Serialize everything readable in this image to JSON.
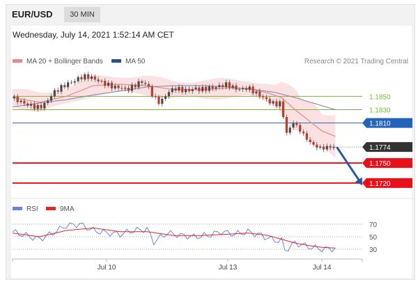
{
  "header": {
    "symbol": "EUR/USD",
    "timeframe": "30 MIN",
    "datetime": "Wednesday, July 14, 2021 1:52:14 AM CET"
  },
  "legend": {
    "ma20_bb": "MA 20 + Bollinger Bands",
    "ma50": "MA 50",
    "copyright": "Research © 2021 Trading Central",
    "rsi": "RSI",
    "rsi_ma": "9MA"
  },
  "colors": {
    "ma20": "#e88a8a",
    "band": "#fbe1e1",
    "ma50": "#7b84a8",
    "support": "#e8101a",
    "resistance": "#7cb53e",
    "pivot": "#2363b8",
    "price": "#333333",
    "rsi": "#6a86d8",
    "rsi_ma": "#e02828",
    "arrow": "#2a58a8"
  },
  "chart_data": {
    "type": "candlestick",
    "price_axis": {
      "min": 1.17,
      "max": 1.189
    },
    "x_labels": [
      "Jul 10",
      "Jul 13",
      "Jul 14"
    ],
    "levels": [
      {
        "value": 1.185,
        "label": "1.1850",
        "kind": "resistance"
      },
      {
        "value": 1.183,
        "label": "1.1830",
        "kind": "resistance"
      },
      {
        "value": 1.181,
        "label": "1.1810",
        "kind": "pivot"
      },
      {
        "value": 1.1774,
        "label": "1.1774",
        "kind": "price"
      },
      {
        "value": 1.175,
        "label": "1.1750",
        "kind": "support"
      },
      {
        "value": 1.172,
        "label": "1.1720",
        "kind": "support"
      }
    ],
    "price_path": [
      [
        0,
        1.1847
      ],
      [
        2,
        1.1843
      ],
      [
        4,
        1.1838
      ],
      [
        6,
        1.1835
      ],
      [
        8,
        1.1833
      ],
      [
        10,
        1.184
      ],
      [
        12,
        1.1855
      ],
      [
        14,
        1.1862
      ],
      [
        16,
        1.1868
      ],
      [
        18,
        1.1872
      ],
      [
        20,
        1.1878
      ],
      [
        22,
        1.188
      ],
      [
        24,
        1.1877
      ],
      [
        26,
        1.1872
      ],
      [
        28,
        1.1868
      ],
      [
        30,
        1.1864
      ],
      [
        32,
        1.1863
      ],
      [
        34,
        1.186
      ],
      [
        36,
        1.1865
      ],
      [
        38,
        1.1872
      ],
      [
        40,
        1.1868
      ],
      [
        42,
        1.1848
      ],
      [
        44,
        1.184
      ],
      [
        46,
        1.1855
      ],
      [
        48,
        1.1862
      ],
      [
        50,
        1.186
      ],
      [
        52,
        1.1858
      ],
      [
        54,
        1.1862
      ],
      [
        56,
        1.186
      ],
      [
        58,
        1.1862
      ],
      [
        60,
        1.1863
      ],
      [
        62,
        1.1866
      ],
      [
        64,
        1.1868
      ],
      [
        66,
        1.1862
      ],
      [
        68,
        1.186
      ],
      [
        70,
        1.1863
      ],
      [
        72,
        1.1856
      ],
      [
        74,
        1.185
      ],
      [
        76,
        1.1843
      ],
      [
        78,
        1.1838
      ],
      [
        80,
        1.184
      ],
      [
        81,
        1.18
      ],
      [
        82,
        1.179
      ],
      [
        83,
        1.1815
      ],
      [
        84,
        1.1808
      ],
      [
        86,
        1.1796
      ],
      [
        88,
        1.1783
      ],
      [
        90,
        1.1775
      ],
      [
        92,
        1.1772
      ],
      [
        94,
        1.1774
      ],
      [
        96,
        1.1774
      ]
    ],
    "ma20_path": [
      [
        0,
        1.1848
      ],
      [
        8,
        1.1841
      ],
      [
        16,
        1.185
      ],
      [
        24,
        1.1866
      ],
      [
        32,
        1.1868
      ],
      [
        40,
        1.1866
      ],
      [
        48,
        1.186
      ],
      [
        56,
        1.186
      ],
      [
        64,
        1.1862
      ],
      [
        70,
        1.1862
      ],
      [
        76,
        1.1855
      ],
      [
        80,
        1.1848
      ],
      [
        84,
        1.183
      ],
      [
        88,
        1.1814
      ],
      [
        92,
        1.1798
      ],
      [
        96,
        1.179
      ]
    ],
    "ma50_path": [
      [
        0,
        1.1834
      ],
      [
        8,
        1.184
      ],
      [
        16,
        1.1845
      ],
      [
        24,
        1.1852
      ],
      [
        32,
        1.1858
      ],
      [
        40,
        1.1864
      ],
      [
        48,
        1.1866
      ],
      [
        56,
        1.1866
      ],
      [
        64,
        1.1864
      ],
      [
        72,
        1.186
      ],
      [
        78,
        1.1856
      ],
      [
        84,
        1.1848
      ],
      [
        90,
        1.1839
      ],
      [
        96,
        1.183
      ]
    ],
    "projection": {
      "from": [
        96,
        1.1774
      ],
      "to": [
        104,
        1.172
      ]
    },
    "rsi": {
      "ticks": [
        30,
        50,
        70
      ],
      "values": [
        [
          0,
          58
        ],
        [
          4,
          52
        ],
        [
          8,
          46
        ],
        [
          12,
          56
        ],
        [
          16,
          68
        ],
        [
          20,
          70
        ],
        [
          24,
          60
        ],
        [
          28,
          56
        ],
        [
          32,
          54
        ],
        [
          36,
          60
        ],
        [
          40,
          62
        ],
        [
          42,
          42
        ],
        [
          46,
          56
        ],
        [
          50,
          52
        ],
        [
          54,
          50
        ],
        [
          58,
          52
        ],
        [
          62,
          58
        ],
        [
          66,
          54
        ],
        [
          70,
          58
        ],
        [
          74,
          52
        ],
        [
          78,
          44
        ],
        [
          80,
          44
        ],
        [
          81,
          28
        ],
        [
          84,
          40
        ],
        [
          88,
          34
        ],
        [
          92,
          30
        ],
        [
          96,
          31
        ]
      ],
      "ma_values": [
        [
          0,
          56
        ],
        [
          8,
          50
        ],
        [
          16,
          60
        ],
        [
          24,
          64
        ],
        [
          32,
          58
        ],
        [
          40,
          58
        ],
        [
          48,
          52
        ],
        [
          56,
          52
        ],
        [
          64,
          54
        ],
        [
          70,
          56
        ],
        [
          76,
          52
        ],
        [
          80,
          46
        ],
        [
          84,
          40
        ],
        [
          88,
          36
        ],
        [
          92,
          33
        ],
        [
          96,
          32
        ]
      ]
    }
  }
}
